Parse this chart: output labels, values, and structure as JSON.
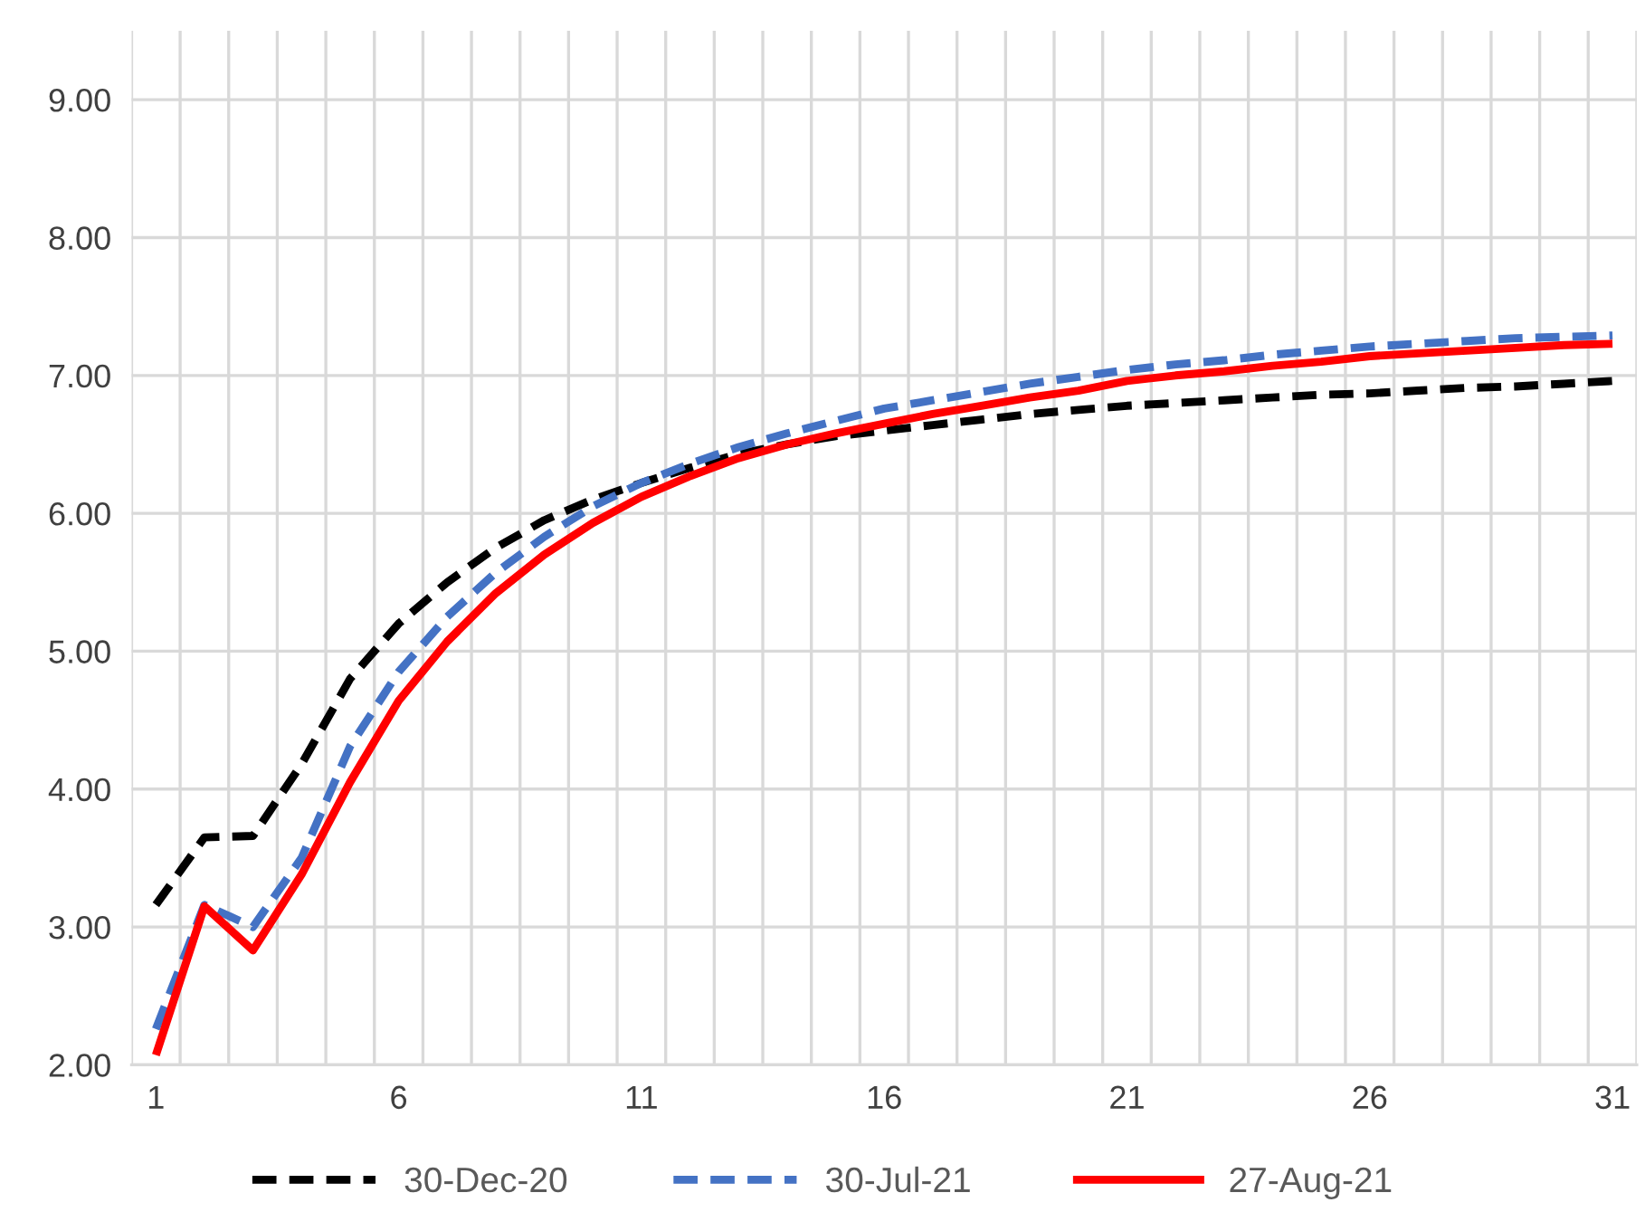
{
  "chart_data": {
    "type": "line",
    "categories": [
      "1",
      null,
      null,
      null,
      null,
      "6",
      null,
      null,
      null,
      null,
      "11",
      null,
      null,
      null,
      null,
      "16",
      null,
      null,
      null,
      null,
      "21",
      null,
      null,
      null,
      null,
      "26",
      null,
      null,
      null,
      null,
      "31"
    ],
    "series": [
      {
        "name": "30-Dec-20",
        "color": "#000000",
        "line_style": "dashed",
        "values": [
          3.16,
          3.65,
          3.66,
          4.18,
          4.8,
          5.2,
          5.5,
          5.75,
          5.95,
          6.1,
          6.22,
          6.33,
          6.43,
          6.5,
          6.56,
          6.6,
          6.64,
          6.68,
          6.72,
          6.75,
          6.78,
          6.8,
          6.82,
          6.84,
          6.86,
          6.87,
          6.89,
          6.91,
          6.92,
          6.94,
          6.96
        ]
      },
      {
        "name": "30-Jul-21",
        "color": "#4472c4",
        "line_style": "dashed",
        "values": [
          2.26,
          3.16,
          3.0,
          3.5,
          4.31,
          4.85,
          5.25,
          5.57,
          5.83,
          6.05,
          6.22,
          6.36,
          6.48,
          6.58,
          6.67,
          6.76,
          6.82,
          6.88,
          6.94,
          6.99,
          7.04,
          7.08,
          7.11,
          7.15,
          7.18,
          7.21,
          7.23,
          7.25,
          7.27,
          7.28,
          7.29
        ]
      },
      {
        "name": "27-Aug-21",
        "color": "#ff0000",
        "line_style": "solid",
        "values": [
          2.07,
          3.15,
          2.83,
          3.38,
          4.05,
          4.64,
          5.07,
          5.42,
          5.7,
          5.93,
          6.12,
          6.27,
          6.4,
          6.5,
          6.58,
          6.65,
          6.72,
          6.78,
          6.84,
          6.89,
          6.96,
          7.0,
          7.03,
          7.07,
          7.1,
          7.14,
          7.16,
          7.18,
          7.2,
          7.22,
          7.23
        ]
      }
    ],
    "ylim": [
      2,
      9.5
    ],
    "yticks": [
      {
        "value": 2,
        "label": "2.00"
      },
      {
        "value": 3,
        "label": "3.00"
      },
      {
        "value": 4,
        "label": "4.00"
      },
      {
        "value": 5,
        "label": "5.00"
      },
      {
        "value": 6,
        "label": "6.00"
      },
      {
        "value": 7,
        "label": "7.00"
      },
      {
        "value": 8,
        "label": "8.00"
      },
      {
        "value": 9,
        "label": "9.00"
      }
    ],
    "grid": true,
    "legend": "bottom",
    "marker": "none"
  }
}
